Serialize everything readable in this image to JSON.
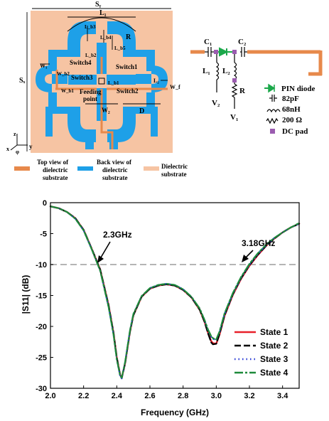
{
  "antenna": {
    "dimensions": {
      "sy": "Sᵧ",
      "sx": "Sₓ",
      "l1": "L₁",
      "l2": "L₂",
      "lb3": "L_b3",
      "lb4": "L_b4",
      "lb5": "L_b5",
      "lb2": "L_b2",
      "lb1": "L_b1",
      "r": "R",
      "d": "D",
      "w1": "W₁",
      "w2": "W₂",
      "wb1": "W_b1",
      "wb2": "W_b2",
      "wf": "W_f"
    },
    "switches": {
      "s1": "Switch1",
      "s2": "Switch2",
      "s3": "Switch3",
      "s4": "Switch4"
    },
    "feeding": [
      "Feeding",
      "point"
    ],
    "axes": {
      "x": "x",
      "y": "y",
      "z": "z",
      "phi": "φ"
    },
    "colors": {
      "substrate": "#F6C4A3",
      "back": "#1EA0E8",
      "top": "#E7894B",
      "diode": "#1BA84A",
      "pad": "#9B5CB0"
    }
  },
  "legend": {
    "top": [
      "Top view of",
      "dielectric",
      "substrate"
    ],
    "back": [
      "Back view of",
      "dielectric",
      "substrate"
    ],
    "dielectric": [
      "Dielectric",
      "substrate"
    ]
  },
  "circuit": {
    "c1": "C₁",
    "c2": "C₂",
    "l1": "L₁",
    "l2": "L₂",
    "r": "R",
    "v1": "V₁",
    "v2": "V₂",
    "legend": [
      {
        "icon": "diode",
        "text": "PIN diode"
      },
      {
        "icon": "capacitor",
        "text": "82pF"
      },
      {
        "icon": "inductor",
        "text": "68nH"
      },
      {
        "icon": "resistor",
        "text": "200 Ω"
      },
      {
        "icon": "pad",
        "text": "DC pad"
      }
    ]
  },
  "chart_data": {
    "type": "line",
    "xlabel": "Frequency (GHz)",
    "ylabel": "|S11| (dB)",
    "xlim": [
      2.0,
      3.5
    ],
    "ylim": [
      -30,
      0
    ],
    "xticks": [
      "2.0",
      "2.2",
      "2.4",
      "2.6",
      "2.8",
      "3.0",
      "3.2",
      "3.4"
    ],
    "yticks": [
      "0",
      "-5",
      "-10",
      "-15",
      "-20",
      "-25",
      "-30"
    ],
    "reference_line": -10,
    "annotations": [
      "2.3GHz",
      "3.18GHz"
    ],
    "legend_position": "bottom-right",
    "x": [
      2.0,
      2.05,
      2.1,
      2.15,
      2.2,
      2.25,
      2.3,
      2.35,
      2.38,
      2.4,
      2.42,
      2.43,
      2.45,
      2.48,
      2.5,
      2.55,
      2.6,
      2.65,
      2.7,
      2.75,
      2.8,
      2.85,
      2.9,
      2.93,
      2.95,
      2.97,
      2.98,
      3.0,
      3.02,
      3.05,
      3.1,
      3.15,
      3.2,
      3.25,
      3.3,
      3.35,
      3.4,
      3.45,
      3.5
    ],
    "series": [
      {
        "name": "State 1",
        "color": "#e8202a",
        "dash": "",
        "values": [
          -0.6,
          -0.9,
          -1.5,
          -2.5,
          -4.4,
          -7.5,
          -10.8,
          -16.5,
          -21,
          -25,
          -27.8,
          -28.3,
          -26,
          -20.8,
          -18.2,
          -15.2,
          -13.9,
          -13.4,
          -13.2,
          -13.4,
          -14.1,
          -15.3,
          -17.3,
          -19.3,
          -21,
          -22.4,
          -22.7,
          -22.8,
          -21.3,
          -18.3,
          -14.9,
          -12.3,
          -10.2,
          -8.5,
          -7,
          -5.8,
          -4.8,
          -4,
          -3.4
        ]
      },
      {
        "name": "State 2",
        "color": "#000000",
        "dash": "9,4",
        "values": [
          -0.6,
          -0.9,
          -1.5,
          -2.5,
          -4.4,
          -7.5,
          -10.8,
          -16.5,
          -21,
          -25,
          -27.8,
          -28.4,
          -26,
          -20.8,
          -18.2,
          -15.2,
          -13.9,
          -13.4,
          -13.2,
          -13.4,
          -14.1,
          -15.3,
          -17.3,
          -19.3,
          -21.1,
          -22.6,
          -22.9,
          -22.8,
          -21.2,
          -18.2,
          -14.8,
          -12.2,
          -10.1,
          -8.4,
          -7,
          -5.8,
          -4.8,
          -4,
          -3.4
        ]
      },
      {
        "name": "State 3",
        "color": "#2a3bd6",
        "dash": "1.5,4",
        "values": [
          -0.6,
          -0.9,
          -1.5,
          -2.6,
          -4.5,
          -7.6,
          -11,
          -16.8,
          -21.3,
          -25.3,
          -28,
          -28.4,
          -25.8,
          -20.6,
          -18,
          -15.1,
          -13.8,
          -13.3,
          -13.1,
          -13.3,
          -14,
          -15.2,
          -17.1,
          -19,
          -20.6,
          -21.7,
          -22,
          -22.2,
          -20.9,
          -18,
          -14.7,
          -12.1,
          -10,
          -8.3,
          -6.9,
          -5.7,
          -4.8,
          -4,
          -3.4
        ]
      },
      {
        "name": "State 4",
        "color": "#1d8a3a",
        "dash": "12,3,3,3",
        "values": [
          -0.6,
          -0.9,
          -1.5,
          -2.6,
          -4.5,
          -7.6,
          -11,
          -16.8,
          -21.3,
          -25.3,
          -27.9,
          -28.3,
          -25.8,
          -20.6,
          -18,
          -15.1,
          -13.8,
          -13.3,
          -13.1,
          -13.3,
          -14,
          -15.2,
          -17.1,
          -19,
          -20.5,
          -21.6,
          -21.9,
          -22.1,
          -20.8,
          -17.9,
          -14.6,
          -12,
          -9.9,
          -8.2,
          -6.8,
          -5.7,
          -4.8,
          -4,
          -3.3
        ]
      }
    ]
  }
}
